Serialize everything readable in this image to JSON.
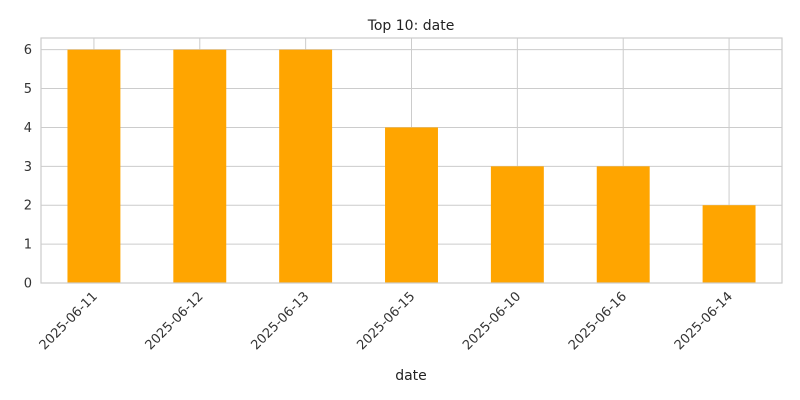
{
  "chart_data": {
    "type": "bar",
    "title": "Top 10: date",
    "xlabel": "date",
    "ylabel": "",
    "categories": [
      "2025-06-11",
      "2025-06-12",
      "2025-06-13",
      "2025-06-15",
      "2025-06-10",
      "2025-06-16",
      "2025-06-14"
    ],
    "values": [
      6,
      6,
      6,
      4,
      3,
      3,
      2
    ],
    "ylim": [
      0,
      6.3
    ],
    "yticks": [
      0,
      1,
      2,
      3,
      4,
      5,
      6
    ],
    "grid": true,
    "legend": "none",
    "bar_color": "#FFA500",
    "grid_color": "#CCCCCC",
    "axis_color": "#CCCCCC"
  }
}
